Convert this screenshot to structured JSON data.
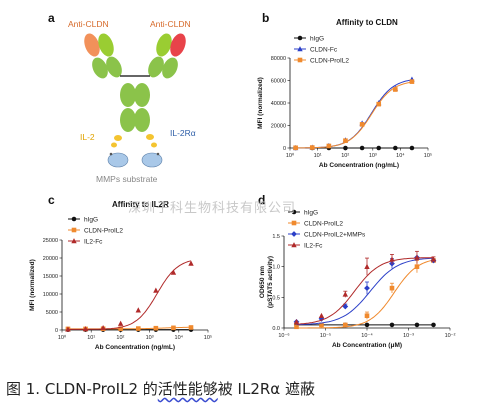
{
  "figure": {
    "caption_prefix": "图 1. CLDN-ProIL2 的",
    "caption_underlined": "活性能够",
    "caption_suffix": "被 IL2Rα 遮蔽",
    "watermark": "深圳子科生物科技有限公司"
  },
  "panel_a": {
    "letter": "a",
    "label_left_antibody": "Anti-CLDN",
    "label_right_antibody": "Anti-CLDN",
    "label_il2": "IL-2",
    "label_il2ra": "IL-2Rα",
    "label_substrate": "MMPs substrate"
  },
  "chart_data": [
    {
      "panel": "b",
      "type": "line",
      "title": "Affinity to CLDN",
      "xlabel": "Ab Concentration (ng/mL)",
      "ylabel": "MFI (normalized)",
      "xscale": "log",
      "xlim": [
        1,
        100000
      ],
      "ylim": [
        0,
        80000
      ],
      "xticks": [
        "10⁰",
        "10¹",
        "10²",
        "10³",
        "10⁴",
        "10⁵"
      ],
      "yticks": [
        "0",
        "20000",
        "40000",
        "60000",
        "80000"
      ],
      "legend": "top-left",
      "series": [
        {
          "name": "hIgG",
          "color": "#111111",
          "marker": "circle",
          "x": [
            1.6,
            6.4,
            25.6,
            102,
            410,
            1640,
            6550,
            26200
          ],
          "y": [
            0,
            0,
            0,
            0,
            0,
            0,
            0,
            0
          ]
        },
        {
          "name": "CLDN-Fc",
          "color": "#2b3fc8",
          "marker": "triangle",
          "x": [
            1.6,
            6.4,
            25.6,
            102,
            410,
            1640,
            6550,
            26200
          ],
          "y": [
            200,
            500,
            2000,
            7000,
            22000,
            40000,
            53000,
            61000
          ]
        },
        {
          "name": "CLDN-ProIL2",
          "color": "#f08a2e",
          "marker": "square",
          "x": [
            1.6,
            6.4,
            25.6,
            102,
            410,
            1640,
            6550,
            26200
          ],
          "y": [
            200,
            400,
            1800,
            6500,
            21000,
            39000,
            52000,
            59000
          ]
        }
      ]
    },
    {
      "panel": "c",
      "type": "line",
      "title": "Affinity to IL2R",
      "xlabel": "Ab Concentration (ng/mL)",
      "ylabel": "MFI (normalized)",
      "xscale": "log",
      "xlim": [
        1,
        100000
      ],
      "ylim": [
        0,
        25000
      ],
      "xticks": [
        "10⁰",
        "10¹",
        "10²",
        "10³",
        "10⁴",
        "10⁵"
      ],
      "yticks": [
        "0",
        "5000",
        "10000",
        "15000",
        "20000",
        "25000"
      ],
      "legend": "top-left",
      "series": [
        {
          "name": "hIgG",
          "color": "#111111",
          "marker": "circle",
          "x": [
            1.6,
            6.4,
            25.6,
            102,
            410,
            1640,
            6550,
            26200
          ],
          "y": [
            100,
            100,
            100,
            100,
            100,
            100,
            100,
            100
          ]
        },
        {
          "name": "CLDN-ProIL2",
          "color": "#f08a2e",
          "marker": "square",
          "x": [
            1.6,
            6.4,
            25.6,
            102,
            410,
            1640,
            6550,
            26200
          ],
          "y": [
            300,
            300,
            350,
            350,
            400,
            500,
            600,
            700
          ]
        },
        {
          "name": "IL2-Fc",
          "color": "#b02a2a",
          "marker": "triangle",
          "x": [
            1.6,
            6.4,
            25.6,
            102,
            410,
            1640,
            6550,
            26200
          ],
          "y": [
            200,
            300,
            600,
            1800,
            5500,
            11000,
            16000,
            18500
          ]
        }
      ]
    },
    {
      "panel": "d",
      "type": "line",
      "xlabel": "Ab Concentration (μM)",
      "ylabel": "OD650 nm (pSTAT5 activity)",
      "xscale": "log",
      "xlim": [
        1e-06,
        0.01
      ],
      "ylim": [
        0,
        1.5
      ],
      "xticks": [
        "10⁻⁶",
        "10⁻⁵",
        "10⁻⁴",
        "10⁻³",
        "10⁻²"
      ],
      "yticks": [
        "0.0",
        "0.5",
        "1.0",
        "1.5"
      ],
      "legend": "top-left",
      "series": [
        {
          "name": "hIgG",
          "color": "#111111",
          "marker": "circle",
          "x": [
            2e-06,
            8e-06,
            3e-05,
            0.0001,
            0.0004,
            0.0016,
            0.004
          ],
          "y": [
            0.05,
            0.05,
            0.05,
            0.05,
            0.05,
            0.05,
            0.05
          ]
        },
        {
          "name": "CLDN-ProIL2",
          "color": "#f08a2e",
          "marker": "square",
          "x": [
            2e-06,
            8e-06,
            3e-05,
            0.0001,
            0.0004,
            0.0016,
            0.004
          ],
          "y": [
            0.02,
            0.05,
            0.05,
            0.2,
            0.65,
            1.0,
            1.1
          ]
        },
        {
          "name": "CLDN-ProIL2+MMPs",
          "color": "#2b3fc8",
          "marker": "diamond",
          "x": [
            2e-06,
            8e-06,
            3e-05,
            0.0001,
            0.0004,
            0.0016,
            0.004
          ],
          "y": [
            0.1,
            0.15,
            0.35,
            0.65,
            1.05,
            1.15,
            1.1
          ]
        },
        {
          "name": "IL2-Fc",
          "color": "#b02a2a",
          "marker": "triangle",
          "x": [
            2e-06,
            8e-06,
            3e-05,
            0.0001,
            0.0004,
            0.0016,
            0.004
          ],
          "y": [
            0.1,
            0.2,
            0.55,
            1.0,
            1.12,
            1.15,
            1.12
          ]
        }
      ]
    }
  ]
}
